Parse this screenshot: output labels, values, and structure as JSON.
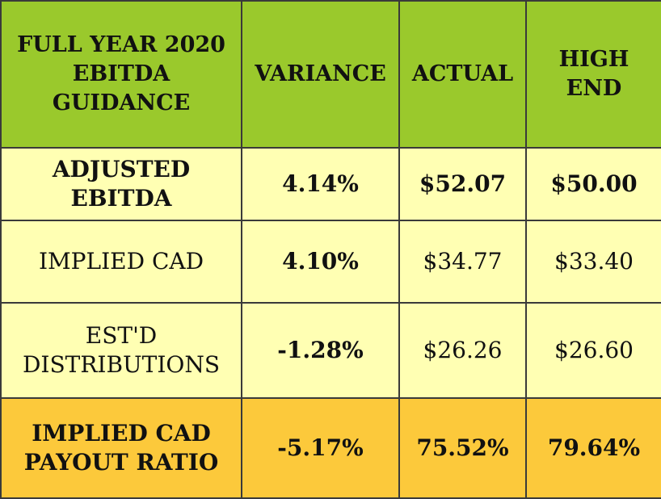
{
  "table": {
    "header": {
      "col1_line1": "FULL YEAR 2020",
      "col1_line2": "EBITDA GUIDANCE",
      "variance": "VARIANCE",
      "actual": "ACTUAL",
      "high_end": "HIGH END"
    },
    "rows": [
      {
        "label_line1": "ADJUSTED EBITDA",
        "label_line2": "",
        "variance": "4.14%",
        "actual": "$52.07",
        "high_end": "$50.00"
      },
      {
        "label_line1": "IMPLIED CAD",
        "label_line2": "",
        "variance": "4.10%",
        "actual": "$34.77",
        "high_end": "$33.40"
      },
      {
        "label_line1": "EST'D",
        "label_line2": "DISTRIBUTIONS",
        "variance": "-1.28%",
        "actual": "$26.26",
        "high_end": "$26.60"
      },
      {
        "label_line1": "IMPLIED CAD",
        "label_line2": "PAYOUT RATIO",
        "variance": "-5.17%",
        "actual": "75.52%",
        "high_end": "79.64%"
      }
    ]
  },
  "colors": {
    "header_bg": "#9ac92c",
    "row_bg": "#ffffb3",
    "payout_row_bg": "#fcc93b",
    "border": "#3a3a3a"
  }
}
